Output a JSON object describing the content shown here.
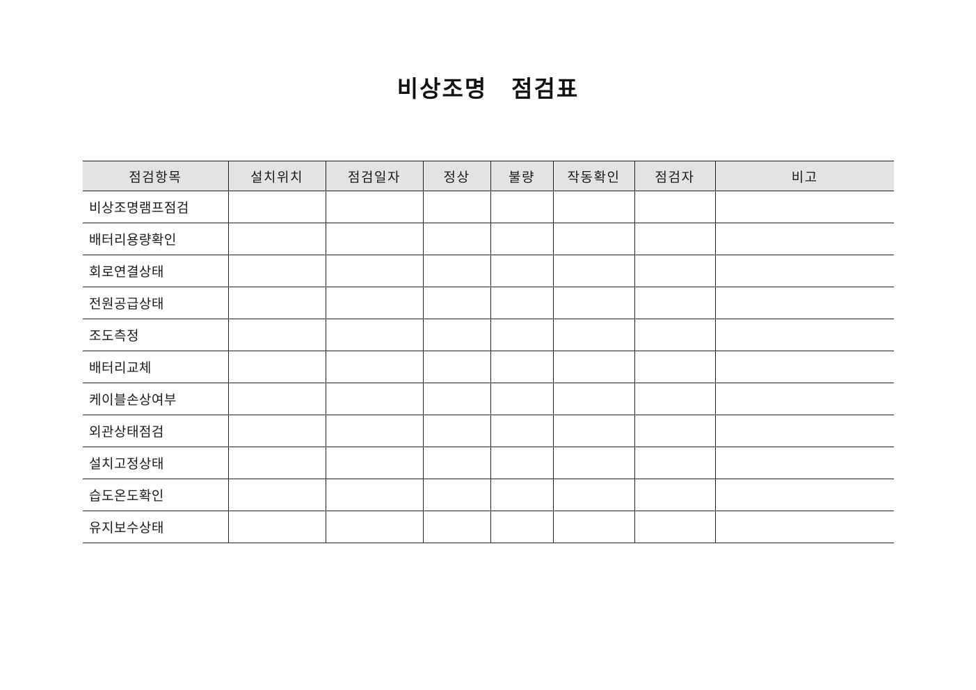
{
  "title": "비상조명　점검표",
  "table": {
    "columns": [
      {
        "label": "점검항목"
      },
      {
        "label": "설치위치"
      },
      {
        "label": "점검일자"
      },
      {
        "label": "정상"
      },
      {
        "label": "불량"
      },
      {
        "label": "작동확인"
      },
      {
        "label": "점검자"
      },
      {
        "label": "비고"
      }
    ],
    "rows": [
      {
        "item": "비상조명램프점검",
        "cells": [
          "",
          "",
          "",
          "",
          "",
          "",
          ""
        ]
      },
      {
        "item": "배터리용량확인",
        "cells": [
          "",
          "",
          "",
          "",
          "",
          "",
          ""
        ]
      },
      {
        "item": "회로연결상태",
        "cells": [
          "",
          "",
          "",
          "",
          "",
          "",
          ""
        ]
      },
      {
        "item": "전원공급상태",
        "cells": [
          "",
          "",
          "",
          "",
          "",
          "",
          ""
        ]
      },
      {
        "item": "조도측정",
        "cells": [
          "",
          "",
          "",
          "",
          "",
          "",
          ""
        ]
      },
      {
        "item": "배터리교체",
        "cells": [
          "",
          "",
          "",
          "",
          "",
          "",
          ""
        ]
      },
      {
        "item": "케이블손상여부",
        "cells": [
          "",
          "",
          "",
          "",
          "",
          "",
          ""
        ]
      },
      {
        "item": "외관상태점검",
        "cells": [
          "",
          "",
          "",
          "",
          "",
          "",
          ""
        ]
      },
      {
        "item": "설치고정상태",
        "cells": [
          "",
          "",
          "",
          "",
          "",
          "",
          ""
        ]
      },
      {
        "item": "습도온도확인",
        "cells": [
          "",
          "",
          "",
          "",
          "",
          "",
          ""
        ]
      },
      {
        "item": "유지보수상태",
        "cells": [
          "",
          "",
          "",
          "",
          "",
          "",
          ""
        ]
      }
    ]
  },
  "colors": {
    "page_background": "#ffffff",
    "header_background": "#e3e3e1",
    "border": "#1f1f1f",
    "text": "#1a1a1a"
  }
}
